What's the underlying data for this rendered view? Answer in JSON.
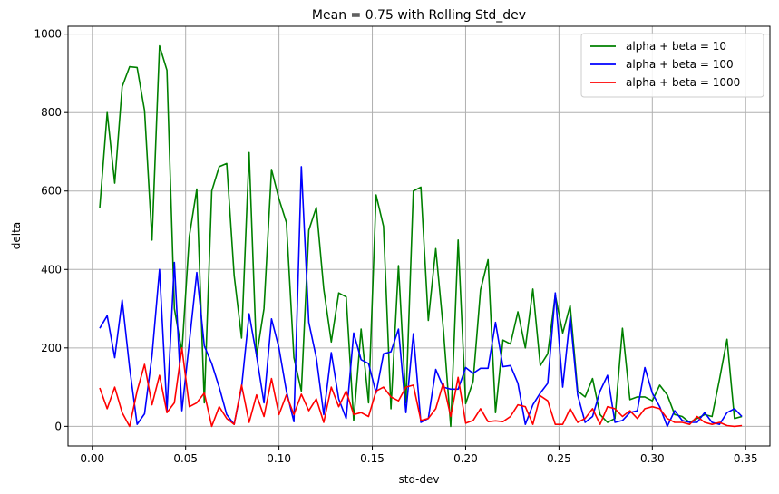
{
  "chart_data": {
    "type": "line",
    "title": "Mean = 0.75 with Rolling Std_dev",
    "xlabel": "std-dev",
    "ylabel": "delta",
    "xlim": [
      -0.013,
      0.363
    ],
    "ylim": [
      -50,
      1020
    ],
    "xticks": [
      0.0,
      0.05,
      0.1,
      0.15,
      0.2,
      0.25,
      0.3,
      0.35
    ],
    "xtick_labels": [
      "0.00",
      "0.05",
      "0.10",
      "0.15",
      "0.20",
      "0.25",
      "0.30",
      "0.35"
    ],
    "yticks": [
      0,
      200,
      400,
      600,
      800,
      1000
    ],
    "ytick_labels": [
      "0",
      "200",
      "400",
      "600",
      "800",
      "1000"
    ],
    "grid": true,
    "legend_position": "top-right",
    "x_start": 0.004,
    "x_step": 0.004,
    "series": [
      {
        "name": "alpha + beta = 10",
        "color": "#008000",
        "values": [
          557,
          800,
          620,
          866,
          917,
          915,
          805,
          475,
          970,
          908,
          300,
          190,
          485,
          605,
          60,
          600,
          662,
          670,
          385,
          225,
          698,
          178,
          300,
          655,
          580,
          520,
          175,
          90,
          500,
          558,
          350,
          215,
          340,
          330,
          15,
          248,
          60,
          590,
          510,
          45,
          410,
          60,
          600,
          610,
          270,
          453,
          250,
          0,
          475,
          58,
          115,
          348,
          425,
          35,
          220,
          210,
          292,
          200,
          350,
          155,
          185,
          335,
          238,
          308,
          90,
          75,
          122,
          30,
          10,
          20,
          250,
          68,
          75,
          75,
          65,
          105,
          80,
          30,
          25,
          10,
          20,
          30,
          25,
          120,
          222,
          20,
          25
        ]
      },
      {
        "name": "alpha + beta = 100",
        "color": "#0000ff",
        "values": [
          250,
          282,
          175,
          322,
          150,
          5,
          32,
          180,
          400,
          40,
          418,
          40,
          215,
          392,
          205,
          160,
          100,
          30,
          5,
          100,
          287,
          180,
          60,
          274,
          200,
          90,
          12,
          662,
          265,
          175,
          30,
          188,
          70,
          20,
          238,
          170,
          160,
          85,
          185,
          190,
          248,
          35,
          236,
          10,
          20,
          145,
          100,
          95,
          95,
          150,
          135,
          148,
          148,
          265,
          152,
          155,
          110,
          5,
          55,
          85,
          110,
          340,
          100,
          280,
          80,
          10,
          25,
          90,
          130,
          10,
          15,
          35,
          40,
          150,
          85,
          50,
          0,
          40,
          15,
          10,
          10,
          35,
          10,
          5,
          35,
          45,
          25
        ]
      },
      {
        "name": "alpha + beta = 1000",
        "color": "#ff0000",
        "values": [
          98,
          45,
          100,
          35,
          0,
          90,
          158,
          55,
          130,
          35,
          60,
          200,
          50,
          60,
          85,
          0,
          50,
          20,
          5,
          105,
          10,
          80,
          25,
          122,
          30,
          80,
          30,
          82,
          40,
          70,
          10,
          100,
          50,
          90,
          30,
          35,
          25,
          90,
          100,
          75,
          65,
          100,
          105,
          15,
          20,
          45,
          110,
          25,
          125,
          8,
          15,
          45,
          12,
          14,
          12,
          25,
          55,
          50,
          5,
          78,
          65,
          5,
          5,
          45,
          10,
          20,
          45,
          5,
          50,
          45,
          25,
          40,
          20,
          45,
          50,
          45,
          20,
          10,
          10,
          5,
          25,
          10,
          5,
          10,
          2,
          0,
          2
        ]
      }
    ]
  }
}
